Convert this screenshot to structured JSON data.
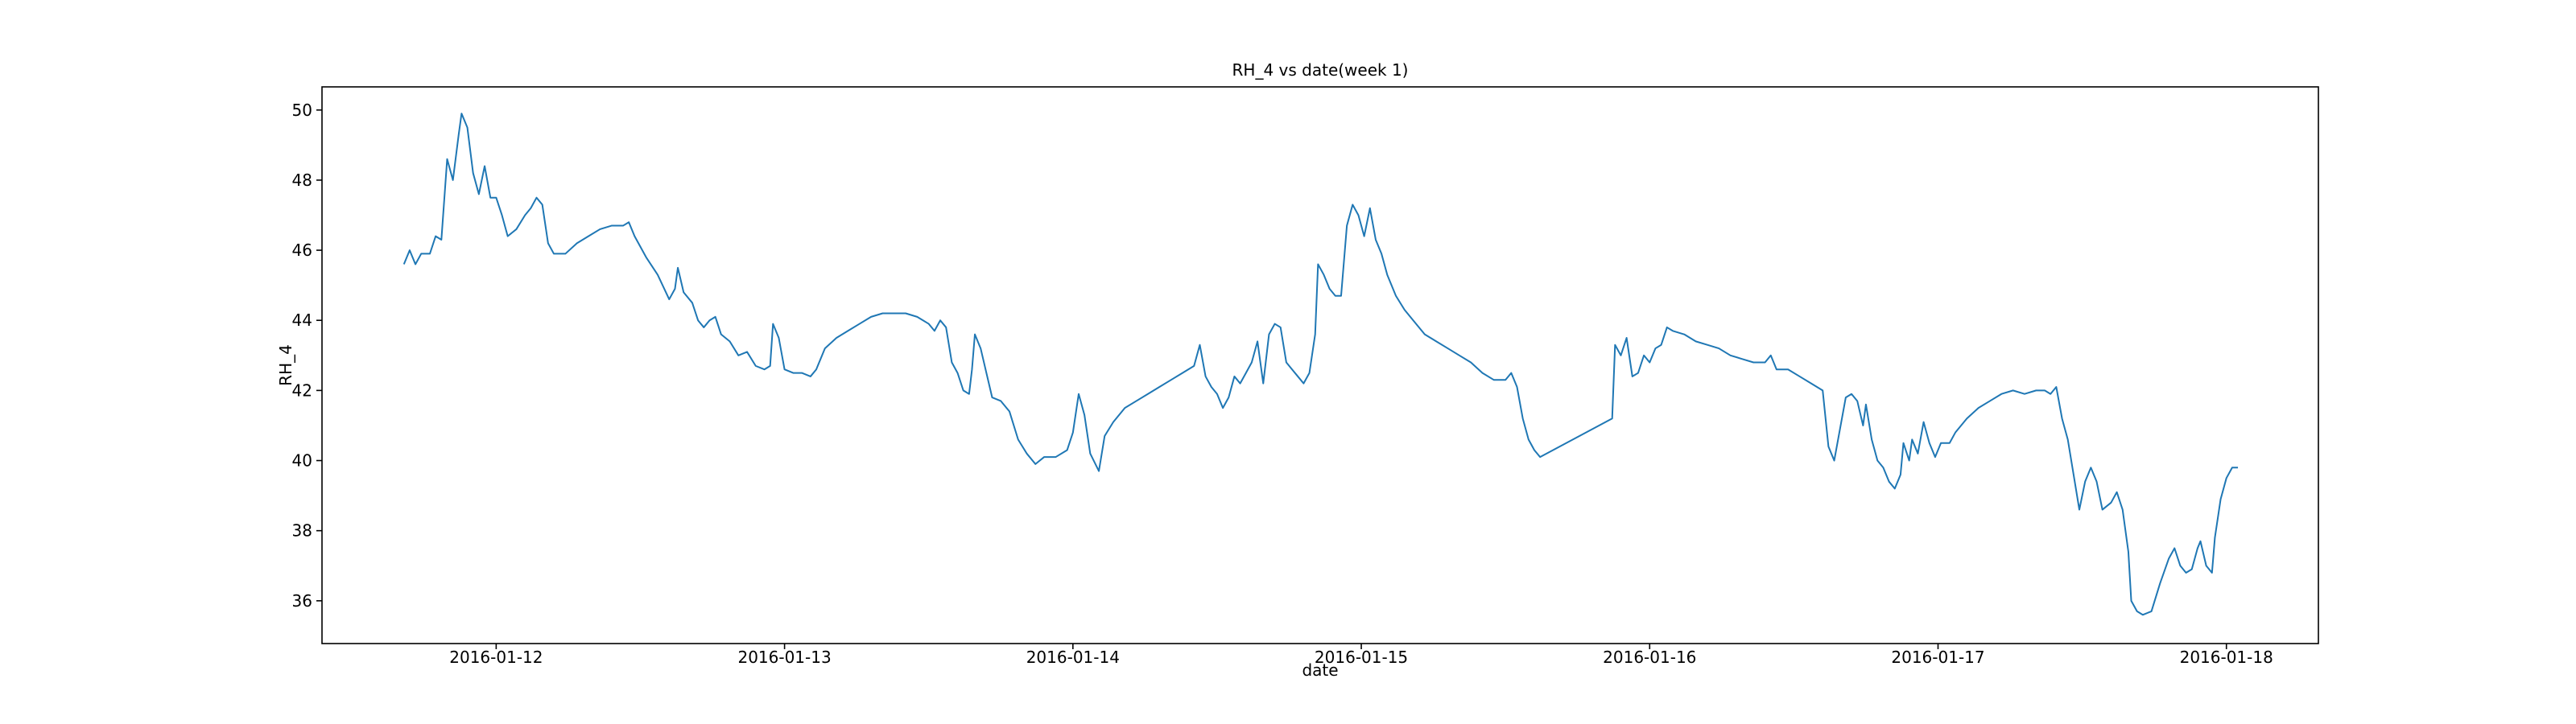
{
  "chart_data": {
    "type": "line",
    "title": "RH_4 vs date(week 1)",
    "xlabel": "date",
    "ylabel": "RH_4",
    "color": "#1f77b4",
    "grid": false,
    "xlim": [
      11.396,
      18.319
    ],
    "ylim": [
      34.78,
      50.66
    ],
    "xticks": [
      {
        "value": 12,
        "label": "2016-01-12"
      },
      {
        "value": 13,
        "label": "2016-01-13"
      },
      {
        "value": 14,
        "label": "2016-01-14"
      },
      {
        "value": 15,
        "label": "2016-01-15"
      },
      {
        "value": 16,
        "label": "2016-01-16"
      },
      {
        "value": 17,
        "label": "2016-01-17"
      },
      {
        "value": 18,
        "label": "2016-01-18"
      }
    ],
    "yticks": [
      36,
      38,
      40,
      42,
      44,
      46,
      48,
      50
    ],
    "x": [
      11.68,
      11.7,
      11.72,
      11.74,
      11.77,
      11.79,
      11.81,
      11.83,
      11.85,
      11.87,
      11.88,
      11.9,
      11.92,
      11.94,
      11.96,
      11.98,
      12.0,
      12.02,
      12.04,
      12.07,
      12.1,
      12.12,
      12.14,
      12.16,
      12.18,
      12.2,
      12.24,
      12.28,
      12.32,
      12.36,
      12.4,
      12.44,
      12.46,
      12.48,
      12.52,
      12.56,
      12.6,
      12.62,
      12.63,
      12.65,
      12.68,
      12.7,
      12.72,
      12.74,
      12.76,
      12.78,
      12.81,
      12.84,
      12.87,
      12.9,
      12.93,
      12.95,
      12.96,
      12.98,
      13.0,
      13.03,
      13.06,
      13.09,
      13.11,
      13.14,
      13.18,
      13.22,
      13.26,
      13.3,
      13.34,
      13.38,
      13.42,
      13.46,
      13.5,
      13.52,
      13.54,
      13.56,
      13.58,
      13.6,
      13.62,
      13.64,
      13.65,
      13.66,
      13.68,
      13.7,
      13.72,
      13.75,
      13.78,
      13.81,
      13.84,
      13.87,
      13.9,
      13.94,
      13.98,
      14.0,
      14.02,
      14.04,
      14.06,
      14.09,
      14.11,
      14.14,
      14.18,
      14.22,
      14.26,
      14.3,
      14.34,
      14.38,
      14.42,
      14.44,
      14.46,
      14.48,
      14.5,
      14.52,
      14.54,
      14.56,
      14.58,
      14.6,
      14.62,
      14.64,
      14.66,
      14.68,
      14.7,
      14.72,
      14.74,
      14.76,
      14.78,
      14.8,
      14.82,
      14.84,
      14.85,
      14.87,
      14.89,
      14.91,
      14.93,
      14.95,
      14.97,
      14.99,
      15.01,
      15.03,
      15.05,
      15.07,
      15.09,
      15.12,
      15.15,
      15.18,
      15.22,
      15.26,
      15.3,
      15.34,
      15.38,
      15.42,
      15.46,
      15.5,
      15.52,
      15.54,
      15.56,
      15.58,
      15.6,
      15.62,
      15.87,
      15.88,
      15.9,
      15.92,
      15.94,
      15.96,
      15.98,
      16.0,
      16.02,
      16.04,
      16.06,
      16.08,
      16.12,
      16.16,
      16.2,
      16.24,
      16.28,
      16.32,
      16.36,
      16.4,
      16.42,
      16.44,
      16.48,
      16.52,
      16.56,
      16.6,
      16.62,
      16.64,
      16.66,
      16.68,
      16.7,
      16.72,
      16.74,
      16.75,
      16.77,
      16.79,
      16.81,
      16.83,
      16.85,
      16.87,
      16.88,
      16.9,
      16.91,
      16.93,
      16.95,
      16.97,
      16.99,
      17.01,
      17.04,
      17.06,
      17.1,
      17.14,
      17.18,
      17.22,
      17.26,
      17.3,
      17.34,
      17.37,
      17.39,
      17.41,
      17.43,
      17.45,
      17.47,
      17.49,
      17.51,
      17.53,
      17.55,
      17.57,
      17.6,
      17.62,
      17.64,
      17.66,
      17.67,
      17.69,
      17.71,
      17.74,
      17.77,
      17.8,
      17.82,
      17.84,
      17.86,
      17.88,
      17.9,
      17.91,
      17.93,
      17.95,
      17.96,
      17.98,
      18.0,
      18.02,
      18.04
    ],
    "values": [
      45.6,
      46.0,
      45.6,
      45.9,
      45.9,
      46.4,
      46.3,
      48.6,
      48.0,
      49.3,
      49.9,
      49.5,
      48.2,
      47.6,
      48.4,
      47.5,
      47.5,
      47.0,
      46.4,
      46.6,
      47.0,
      47.2,
      47.5,
      47.3,
      46.2,
      45.9,
      45.9,
      46.2,
      46.4,
      46.6,
      46.7,
      46.7,
      46.8,
      46.4,
      45.8,
      45.3,
      44.6,
      44.9,
      45.5,
      44.8,
      44.5,
      44.0,
      43.8,
      44.0,
      44.1,
      43.6,
      43.4,
      43.0,
      43.1,
      42.7,
      42.6,
      42.7,
      43.9,
      43.5,
      42.6,
      42.5,
      42.5,
      42.4,
      42.6,
      43.2,
      43.5,
      43.7,
      43.9,
      44.1,
      44.2,
      44.2,
      44.2,
      44.1,
      43.9,
      43.7,
      44.0,
      43.8,
      42.8,
      42.5,
      42.0,
      41.9,
      42.6,
      43.6,
      43.2,
      42.5,
      41.8,
      41.7,
      41.4,
      40.6,
      40.2,
      39.9,
      40.1,
      40.1,
      40.3,
      40.8,
      41.9,
      41.3,
      40.2,
      39.7,
      40.7,
      41.1,
      41.5,
      41.7,
      41.9,
      42.1,
      42.3,
      42.5,
      42.7,
      43.3,
      42.4,
      42.1,
      41.9,
      41.5,
      41.8,
      42.4,
      42.2,
      42.5,
      42.8,
      43.4,
      42.2,
      43.6,
      43.9,
      43.8,
      42.8,
      42.6,
      42.4,
      42.2,
      42.5,
      43.6,
      45.6,
      45.3,
      44.9,
      44.7,
      44.7,
      46.7,
      47.3,
      47.0,
      46.4,
      47.2,
      46.3,
      45.9,
      45.3,
      44.7,
      44.3,
      44.0,
      43.6,
      43.4,
      43.2,
      43.0,
      42.8,
      42.5,
      42.3,
      42.3,
      42.5,
      42.1,
      41.2,
      40.6,
      40.3,
      40.1,
      41.2,
      43.3,
      43.0,
      43.5,
      42.4,
      42.5,
      43.0,
      42.8,
      43.2,
      43.3,
      43.8,
      43.7,
      43.6,
      43.4,
      43.3,
      43.2,
      43.0,
      42.9,
      42.8,
      42.8,
      43.0,
      42.6,
      42.6,
      42.4,
      42.2,
      42.0,
      40.4,
      40.0,
      40.9,
      41.8,
      41.9,
      41.7,
      41.0,
      41.6,
      40.6,
      40.0,
      39.8,
      39.4,
      39.2,
      39.6,
      40.5,
      40.0,
      40.6,
      40.2,
      41.1,
      40.5,
      40.1,
      40.5,
      40.5,
      40.8,
      41.2,
      41.5,
      41.7,
      41.9,
      42.0,
      41.9,
      42.0,
      42.0,
      41.9,
      42.1,
      41.2,
      40.6,
      39.6,
      38.6,
      39.4,
      39.8,
      39.4,
      38.6,
      38.8,
      39.1,
      38.6,
      37.4,
      36.0,
      35.7,
      35.6,
      35.7,
      36.5,
      37.2,
      37.5,
      37.0,
      36.8,
      36.9,
      37.5,
      37.7,
      37.0,
      36.8,
      37.8,
      38.9,
      39.5,
      39.8,
      39.8
    ]
  }
}
